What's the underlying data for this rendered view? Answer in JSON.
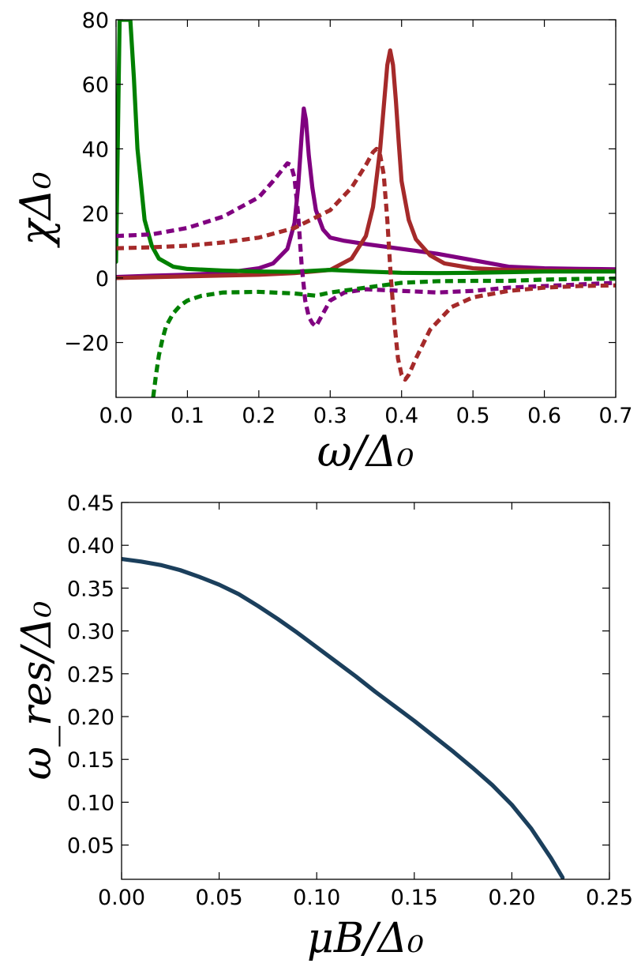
{
  "chart_data": [
    {
      "type": "line",
      "xlabel": "ω/Δ₀",
      "ylabel": "χΔ₀",
      "xlim": [
        0.0,
        0.7
      ],
      "ylim": [
        -37,
        80
      ],
      "xticks": [
        "0.0",
        "0.1",
        "0.2",
        "0.3",
        "0.4",
        "0.5",
        "0.6",
        "0.7"
      ],
      "yticks": [
        "−20",
        "0",
        "20",
        "40",
        "60",
        "80"
      ],
      "grid": false,
      "series": [
        {
          "color": "#800080",
          "style": "solid",
          "x": [
            0.0,
            0.05,
            0.1,
            0.15,
            0.2,
            0.22,
            0.24,
            0.25,
            0.255,
            0.26,
            0.263,
            0.266,
            0.27,
            0.275,
            0.28,
            0.29,
            0.3,
            0.32,
            0.35,
            0.4,
            0.45,
            0.5,
            0.55,
            0.6,
            0.65,
            0.7
          ],
          "y": [
            0.3,
            0.7,
            1.0,
            1.5,
            3.0,
            4.5,
            9.0,
            17.0,
            28.0,
            44.0,
            52.5,
            49.0,
            38.0,
            28.0,
            21.0,
            15.0,
            12.5,
            11.5,
            10.5,
            9.0,
            7.5,
            5.5,
            3.5,
            3.0,
            2.8,
            2.7
          ]
        },
        {
          "color": "#a52a2a",
          "style": "solid",
          "x": [
            0.0,
            0.1,
            0.2,
            0.25,
            0.3,
            0.33,
            0.35,
            0.36,
            0.37,
            0.375,
            0.38,
            0.384,
            0.388,
            0.392,
            0.396,
            0.4,
            0.41,
            0.42,
            0.44,
            0.46,
            0.5,
            0.55,
            0.6,
            0.65,
            0.7
          ],
          "y": [
            0.0,
            0.5,
            1.0,
            1.5,
            2.5,
            6.0,
            13.0,
            22.0,
            40.0,
            53.0,
            66.0,
            70.5,
            66.0,
            55.0,
            42.0,
            30.0,
            18.0,
            12.0,
            7.0,
            4.5,
            3.0,
            2.5,
            2.3,
            2.2,
            2.1
          ]
        },
        {
          "color": "#008000",
          "style": "solid",
          "x": [
            0.0,
            0.005,
            0.01,
            0.015,
            0.02,
            0.025,
            0.03,
            0.04,
            0.05,
            0.06,
            0.08,
            0.1,
            0.15,
            0.2,
            0.25,
            0.3,
            0.35,
            0.4,
            0.45,
            0.5,
            0.55,
            0.6,
            0.65,
            0.7
          ],
          "y": [
            5.0,
            80.0,
            80.0,
            80.0,
            80.0,
            62.0,
            40.0,
            18.0,
            10.0,
            6.0,
            3.5,
            2.8,
            2.3,
            2.0,
            1.9,
            2.5,
            2.0,
            1.6,
            1.5,
            1.6,
            1.8,
            2.0,
            2.0,
            2.0
          ]
        },
        {
          "color": "#800080",
          "style": "dashed",
          "x": [
            0.0,
            0.05,
            0.1,
            0.15,
            0.2,
            0.22,
            0.24,
            0.245,
            0.25,
            0.255,
            0.26,
            0.265,
            0.27,
            0.275,
            0.28,
            0.29,
            0.3,
            0.32,
            0.35,
            0.4,
            0.45,
            0.5,
            0.55,
            0.6,
            0.65,
            0.7
          ],
          "y": [
            13.0,
            13.5,
            15.5,
            19.0,
            25.0,
            30.0,
            35.5,
            35.0,
            31.0,
            20.0,
            4.0,
            -7.0,
            -12.0,
            -14.0,
            -15.0,
            -11.0,
            -7.0,
            -4.5,
            -3.5,
            -4.0,
            -4.5,
            -4.0,
            -3.0,
            -2.5,
            -2.0,
            -1.5
          ]
        },
        {
          "color": "#a52a2a",
          "style": "dashed",
          "x": [
            0.0,
            0.05,
            0.1,
            0.15,
            0.2,
            0.25,
            0.3,
            0.33,
            0.35,
            0.36,
            0.365,
            0.37,
            0.375,
            0.38,
            0.385,
            0.39,
            0.395,
            0.4,
            0.405,
            0.41,
            0.42,
            0.44,
            0.47,
            0.5,
            0.55,
            0.6,
            0.65,
            0.7
          ],
          "y": [
            9.2,
            9.5,
            10.0,
            11.0,
            12.5,
            15.5,
            21.0,
            28.0,
            35.0,
            39.0,
            40.0,
            38.0,
            32.0,
            18.0,
            0.0,
            -14.0,
            -25.0,
            -30.0,
            -31.5,
            -30.0,
            -25.0,
            -16.0,
            -9.0,
            -6.0,
            -4.0,
            -3.0,
            -2.5,
            -2.3
          ]
        },
        {
          "color": "#008000",
          "style": "dashed",
          "x": [
            0.052,
            0.056,
            0.06,
            0.065,
            0.07,
            0.08,
            0.09,
            0.1,
            0.12,
            0.15,
            0.2,
            0.25,
            0.28,
            0.3,
            0.35,
            0.4,
            0.45,
            0.5,
            0.55,
            0.6,
            0.65,
            0.7
          ],
          "y": [
            -37.0,
            -30.0,
            -24.0,
            -19.0,
            -15.0,
            -11.0,
            -8.5,
            -7.0,
            -5.5,
            -4.5,
            -4.3,
            -4.8,
            -5.5,
            -4.5,
            -3.0,
            -1.5,
            -1.0,
            -0.9,
            -0.9,
            -0.5,
            -0.3,
            -0.2
          ]
        }
      ]
    },
    {
      "type": "line",
      "xlabel": "μB/Δ₀",
      "ylabel": "ω_res/Δ₀",
      "xlim": [
        0.0,
        0.25
      ],
      "ylim": [
        0.01,
        0.45
      ],
      "xticks": [
        "0.00",
        "0.05",
        "0.10",
        "0.15",
        "0.20",
        "0.25"
      ],
      "yticks": [
        "0.05",
        "0.10",
        "0.15",
        "0.20",
        "0.25",
        "0.30",
        "0.35",
        "0.40",
        "0.45"
      ],
      "grid": false,
      "series": [
        {
          "color": "#1b3f5c",
          "style": "solid",
          "x": [
            0.0,
            0.01,
            0.02,
            0.03,
            0.04,
            0.05,
            0.06,
            0.07,
            0.08,
            0.09,
            0.1,
            0.11,
            0.12,
            0.13,
            0.14,
            0.15,
            0.16,
            0.17,
            0.18,
            0.19,
            0.2,
            0.21,
            0.22,
            0.226
          ],
          "y": [
            0.384,
            0.381,
            0.377,
            0.371,
            0.363,
            0.354,
            0.343,
            0.329,
            0.314,
            0.298,
            0.281,
            0.264,
            0.247,
            0.229,
            0.212,
            0.195,
            0.177,
            0.159,
            0.14,
            0.12,
            0.097,
            0.069,
            0.035,
            0.012
          ]
        }
      ]
    }
  ]
}
